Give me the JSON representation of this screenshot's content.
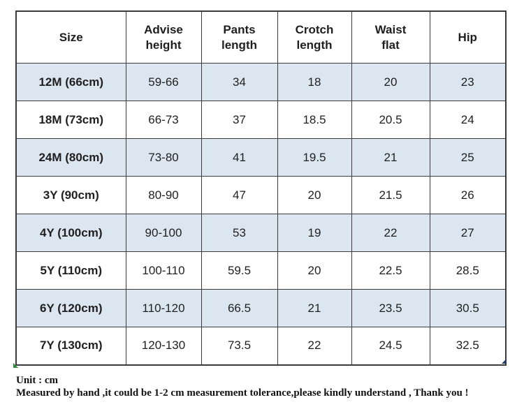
{
  "table": {
    "columns": [
      {
        "key": "size",
        "label": "Size",
        "line1": "Size"
      },
      {
        "key": "advise_height",
        "label": "Advise height",
        "line1": "Advise",
        "line2": "height"
      },
      {
        "key": "pants_length",
        "label": "Pants length",
        "line1": "Pants",
        "line2": "length"
      },
      {
        "key": "crotch_length",
        "label": "Crotch length",
        "line1": "Crotch",
        "line2": "length"
      },
      {
        "key": "waist_flat",
        "label": "Waist flat",
        "line1": "Waist",
        "line2": "flat"
      },
      {
        "key": "hip",
        "label": "Hip",
        "line1": "Hip"
      }
    ],
    "rows": [
      {
        "size": "12M (66cm)",
        "advise_height": "59-66",
        "pants_length": "34",
        "crotch_length": "18",
        "waist_flat": "20",
        "hip": "23"
      },
      {
        "size": "18M (73cm)",
        "advise_height": "66-73",
        "pants_length": "37",
        "crotch_length": "18.5",
        "waist_flat": "20.5",
        "hip": "24"
      },
      {
        "size": "24M (80cm)",
        "advise_height": "73-80",
        "pants_length": "41",
        "crotch_length": "19.5",
        "waist_flat": "21",
        "hip": "25"
      },
      {
        "size": "3Y (90cm)",
        "advise_height": "80-90",
        "pants_length": "47",
        "crotch_length": "20",
        "waist_flat": "21.5",
        "hip": "26"
      },
      {
        "size": "4Y (100cm)",
        "advise_height": "90-100",
        "pants_length": "53",
        "crotch_length": "19",
        "waist_flat": "22",
        "hip": "27"
      },
      {
        "size": "5Y (110cm)",
        "advise_height": "100-110",
        "pants_length": "59.5",
        "crotch_length": "20",
        "waist_flat": "22.5",
        "hip": "28.5"
      },
      {
        "size": "6Y (120cm)",
        "advise_height": "110-120",
        "pants_length": "66.5",
        "crotch_length": "21",
        "waist_flat": "23.5",
        "hip": "30.5"
      },
      {
        "size": "7Y (130cm)",
        "advise_height": "120-130",
        "pants_length": "73.5",
        "crotch_length": "22",
        "waist_flat": "24.5",
        "hip": "32.5"
      }
    ]
  },
  "footer": {
    "unit_note": "Unit : cm",
    "tolerance_note": "Measured by hand ,it could be 1-2 cm measurement tolerance,please kindly understand , Thank you !"
  },
  "colors": {
    "row_stripe": "#dce6f1",
    "border": "#3a3a3a",
    "text": "#1f1f1f"
  }
}
